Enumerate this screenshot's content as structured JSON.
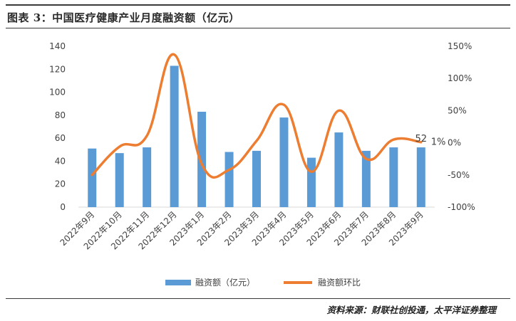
{
  "header": {
    "title": "图表 3：中国医疗健康产业月度融资额（亿元）"
  },
  "footer": {
    "source": "资料来源：财联社创投通，太平洋证券整理"
  },
  "chart_data": {
    "type": "bar+line",
    "categories": [
      "2022年9月",
      "2022年10月",
      "2022年11月",
      "2022年12月",
      "2023年1月",
      "2023年2月",
      "2023年3月",
      "2023年4月",
      "2023年5月",
      "2023年6月",
      "2023年7月",
      "2023年8月",
      "2023年9月"
    ],
    "series": [
      {
        "name": "融资额（亿元）",
        "type": "bar",
        "axis": "left",
        "color": "#5b9bd5",
        "values": [
          51,
          47,
          52,
          123,
          83,
          48,
          49,
          78,
          43,
          65,
          49,
          52,
          52
        ]
      },
      {
        "name": "融资额环比",
        "type": "line",
        "axis": "right",
        "color": "#ed7d31",
        "values": [
          -50,
          -6,
          11,
          137,
          -33,
          -42,
          3,
          59,
          -45,
          50,
          -25,
          5,
          1
        ]
      }
    ],
    "left_axis": {
      "min": 0,
      "max": 140,
      "ticks": [
        0,
        20,
        40,
        60,
        80,
        100,
        120,
        140
      ]
    },
    "right_axis": {
      "min": -100,
      "max": 150,
      "ticks": [
        -100,
        -50,
        0,
        50,
        100,
        150
      ],
      "tick_labels": [
        "-100%",
        "-50%",
        "0%",
        "50%",
        "100%",
        "150%"
      ]
    },
    "annotations": {
      "bar_last_label": "52",
      "line_last_label": "1%"
    },
    "legend": {
      "position": "bottom"
    }
  }
}
